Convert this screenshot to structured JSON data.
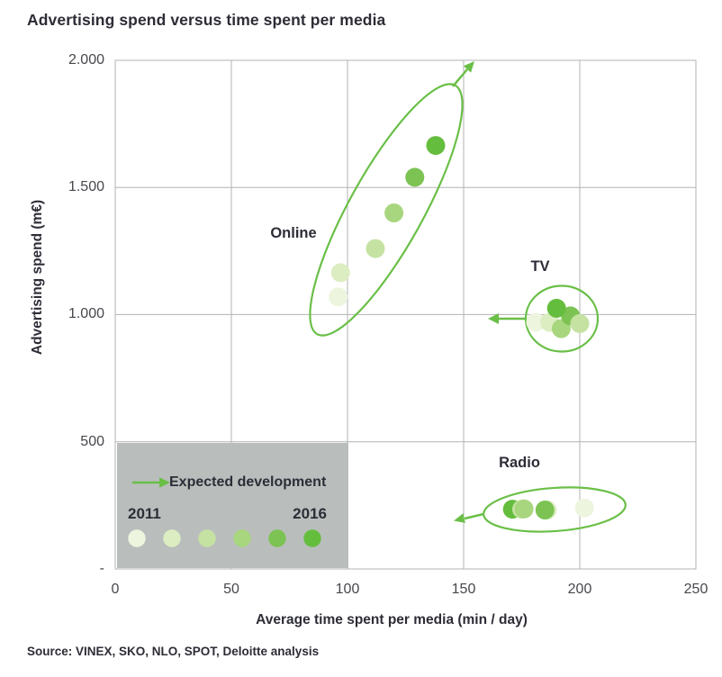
{
  "title": "Advertising spend versus time spent per media",
  "source": "Source: VINEX, SKO, NLO, SPOT, Deloitte analysis",
  "axes": {
    "x_label": "Average time spent per media (min / day)",
    "y_label": "Advertising spend (m€)",
    "x_ticks": [
      "0",
      "50",
      "100",
      "150",
      "200",
      "250"
    ],
    "y_ticks": [
      "2.000",
      "1.500",
      "1.000",
      "500",
      "-"
    ]
  },
  "legend": {
    "arrow_label": "Expected development",
    "start_year": "2011",
    "end_year": "2016"
  },
  "colors": {
    "accent_green": "#6abf47",
    "gridline": "#b3b3b3",
    "legend_box": "#b9bebc",
    "text_dark": "#2d2d37",
    "tick_text": "#47474d"
  },
  "chart_data": {
    "type": "scatter",
    "title": "Advertising spend versus time spent per media",
    "xlabel": "Average time spent per media (min / day)",
    "ylabel": "Advertising spend (m€)",
    "xlim": [
      0,
      250
    ],
    "ylim": [
      0,
      2000
    ],
    "grid": true,
    "years": [
      2011,
      2012,
      2013,
      2014,
      2015,
      2016
    ],
    "year_colors": [
      "#edf5df",
      "#dcedc2",
      "#c5e2a2",
      "#a8d67e",
      "#7cc353",
      "#65bd3e"
    ],
    "annotations": [
      "Online cluster circled with arrow up-right (expected growth)",
      "TV cluster circled with arrow left",
      "Radio cluster circled with arrow left"
    ],
    "series": [
      {
        "name": "Online",
        "label": "Online",
        "points": [
          {
            "year": 2011,
            "x": 96,
            "y": 1070,
            "z": 0
          },
          {
            "year": 2012,
            "x": 97,
            "y": 1165,
            "z": 1
          },
          {
            "year": 2013,
            "x": 112,
            "y": 1260,
            "z": 2
          },
          {
            "year": 2014,
            "x": 120,
            "y": 1400,
            "z": 3
          },
          {
            "year": 2015,
            "x": 129,
            "y": 1540,
            "z": 4
          },
          {
            "year": 2016,
            "x": 138,
            "y": 1665,
            "z": 5
          }
        ]
      },
      {
        "name": "TV",
        "label": "TV",
        "points": [
          {
            "year": 2011,
            "x": 181,
            "y": 970,
            "z": 0
          },
          {
            "year": 2012,
            "x": 187,
            "y": 970,
            "z": 1
          },
          {
            "year": 2013,
            "x": 200,
            "y": 965,
            "z": 4
          },
          {
            "year": 2014,
            "x": 192,
            "y": 945,
            "z": 2
          },
          {
            "year": 2015,
            "x": 196,
            "y": 995,
            "z": 3
          },
          {
            "year": 2016,
            "x": 190,
            "y": 1025,
            "z": 5
          }
        ]
      },
      {
        "name": "Radio",
        "label": "Radio",
        "points": [
          {
            "year": 2011,
            "x": 202,
            "y": 240,
            "z": 2
          },
          {
            "year": 2012,
            "x": 186,
            "y": 232,
            "z": 0
          },
          {
            "year": 2013,
            "x": 175,
            "y": 235,
            "z": 4
          },
          {
            "year": 2014,
            "x": 176,
            "y": 236,
            "z": 5
          },
          {
            "year": 2015,
            "x": 185,
            "y": 232,
            "z": 1
          },
          {
            "year": 2016,
            "x": 171,
            "y": 235,
            "z": 3
          }
        ]
      }
    ]
  }
}
